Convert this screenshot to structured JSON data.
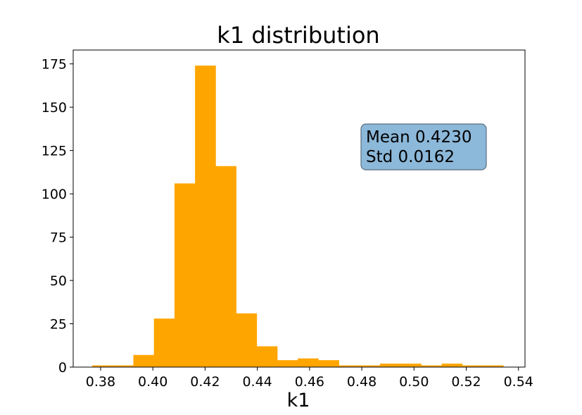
{
  "chart_data": {
    "type": "bar",
    "title": "k1 distribution",
    "xlabel": "k1",
    "ylabel": "",
    "xlim": [
      0.3695,
      0.5425
    ],
    "ylim": [
      0,
      183
    ],
    "x_ticks": [
      0.38,
      0.4,
      0.42,
      0.44,
      0.46,
      0.48,
      0.5,
      0.52,
      0.54
    ],
    "x_tick_labels": [
      "0.38",
      "0.40",
      "0.42",
      "0.44",
      "0.46",
      "0.48",
      "0.50",
      "0.52",
      "0.54"
    ],
    "y_ticks": [
      0,
      25,
      50,
      75,
      100,
      125,
      150,
      175
    ],
    "y_tick_labels": [
      "0",
      "25",
      "50",
      "75",
      "100",
      "125",
      "150",
      "175"
    ],
    "grid": false,
    "bin_start": 0.3768,
    "bin_width": 0.00787,
    "values": [
      1,
      1,
      7,
      28,
      106,
      174,
      116,
      31,
      12,
      4,
      5,
      4,
      1,
      1,
      2,
      2,
      1,
      2,
      1,
      1
    ],
    "bar_color": "#FFA500",
    "annotation": {
      "lines": [
        "Mean 0.4230",
        "Std 0.0162"
      ],
      "position": "upper-right",
      "box_color": "#8CB8D9",
      "border_color": "#5A6E80"
    }
  }
}
